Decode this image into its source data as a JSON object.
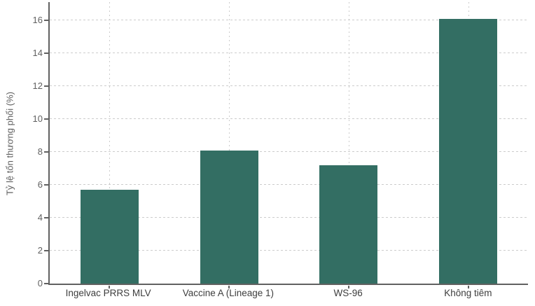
{
  "chart_data": {
    "type": "bar",
    "title": "",
    "xlabel": "",
    "ylabel": "Tỷ lệ tổn thương phổi (%)",
    "categories": [
      "Ingelvac PRRS MLV",
      "Vaccine A (Lineage 1)",
      "WS-96",
      "Không tiêm"
    ],
    "values": [
      5.7,
      8.1,
      7.2,
      16.1
    ],
    "ylim": [
      0,
      17.1
    ],
    "yticks": [
      0,
      2,
      4,
      6,
      8,
      10,
      12,
      14,
      16
    ],
    "grid": "dashed-horizontal-and-vertical",
    "legend": "none",
    "colors": {
      "bar": "#336e63",
      "axis": "#616161",
      "gridline": "#cccccc",
      "tick_label": "#616161",
      "category_label": "#3d3d3d",
      "background": "#ffffff"
    }
  }
}
